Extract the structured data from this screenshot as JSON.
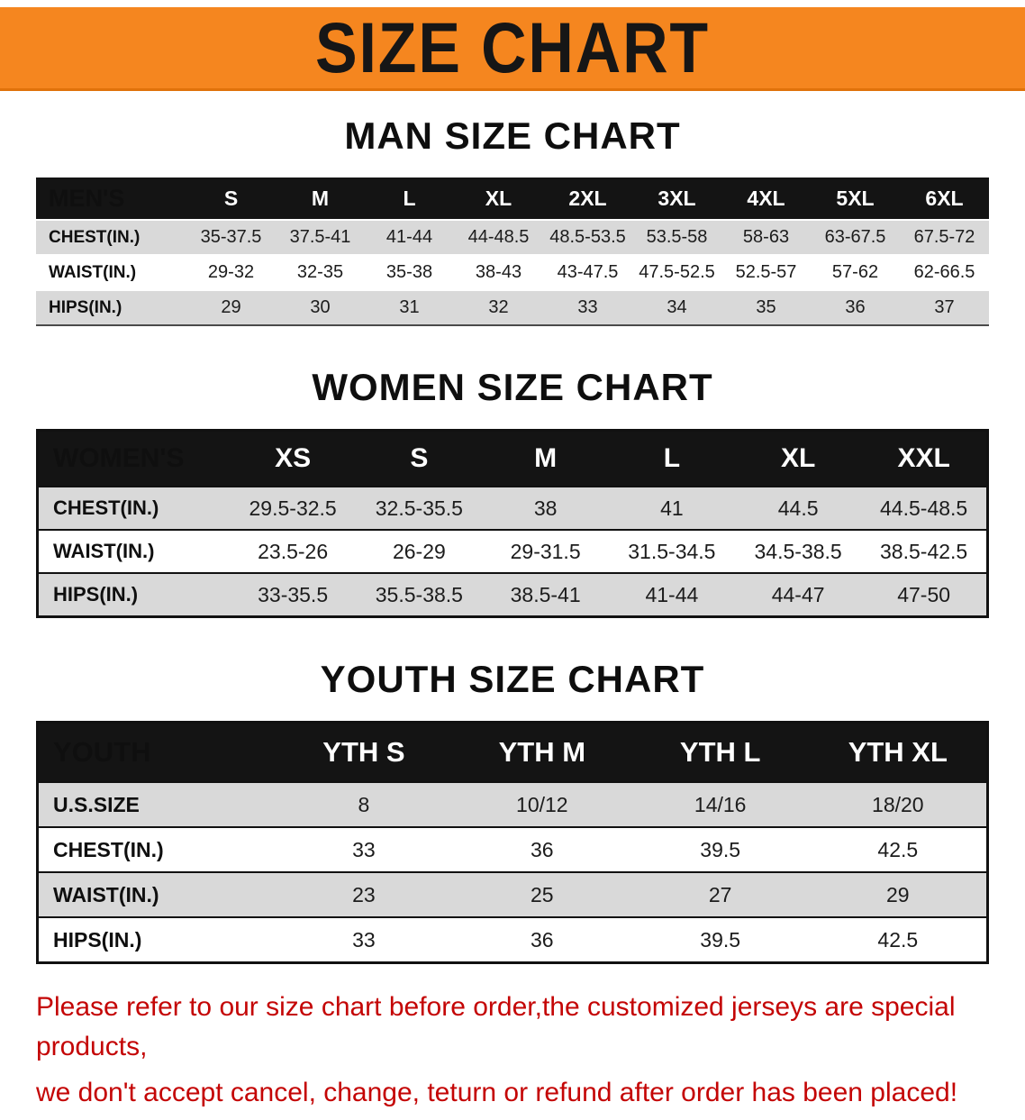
{
  "banner": {
    "title": "SIZE CHART"
  },
  "colors": {
    "banner_bg": "#F5861F",
    "table_header_bg": "#141414",
    "row_gray": "#D9D9D9",
    "notice_red": "#C40505"
  },
  "sections": [
    {
      "id": "men",
      "heading": "MAN SIZE CHART",
      "table": {
        "header": [
          "MEN'S",
          "S",
          "M",
          "L",
          "XL",
          "2XL",
          "3XL",
          "4XL",
          "5XL",
          "6XL"
        ],
        "rows": [
          [
            "CHEST(IN.)",
            "35-37.5",
            "37.5-41",
            "41-44",
            "44-48.5",
            "48.5-53.5",
            "53.5-58",
            "58-63",
            "63-67.5",
            "67.5-72"
          ],
          [
            "WAIST(IN.)",
            "29-32",
            "32-35",
            "35-38",
            "38-43",
            "43-47.5",
            "47.5-52.5",
            "52.5-57",
            "57-62",
            "62-66.5"
          ],
          [
            "HIPS(IN.)",
            "29",
            "30",
            "31",
            "32",
            "33",
            "34",
            "35",
            "36",
            "37"
          ]
        ]
      }
    },
    {
      "id": "women",
      "heading": "WOMEN SIZE CHART",
      "table": {
        "header": [
          "WOMEN'S",
          "XS",
          "S",
          "M",
          "L",
          "XL",
          "XXL"
        ],
        "rows": [
          [
            "CHEST(IN.)",
            "29.5-32.5",
            "32.5-35.5",
            "38",
            "41",
            "44.5",
            "44.5-48.5"
          ],
          [
            "WAIST(IN.)",
            "23.5-26",
            "26-29",
            "29-31.5",
            "31.5-34.5",
            "34.5-38.5",
            "38.5-42.5"
          ],
          [
            "HIPS(IN.)",
            "33-35.5",
            "35.5-38.5",
            "38.5-41",
            "41-44",
            "44-47",
            "47-50"
          ]
        ]
      }
    },
    {
      "id": "youth",
      "heading": "YOUTH SIZE CHART",
      "table": {
        "header": [
          "YOUTH",
          "YTH S",
          "YTH M",
          "YTH L",
          "YTH XL"
        ],
        "rows": [
          [
            "U.S.SIZE",
            "8",
            "10/12",
            "14/16",
            "18/20"
          ],
          [
            "CHEST(IN.)",
            "33",
            "36",
            "39.5",
            "42.5"
          ],
          [
            "WAIST(IN.)",
            "23",
            "25",
            "27",
            "29"
          ],
          [
            "HIPS(IN.)",
            "33",
            "36",
            "39.5",
            "42.5"
          ]
        ]
      }
    }
  ],
  "footer": {
    "lines": [
      "Please refer to our size chart before order,the customized jerseys are special products,",
      "we don't accept cancel, change, teturn or refund after order has been placed!"
    ]
  }
}
